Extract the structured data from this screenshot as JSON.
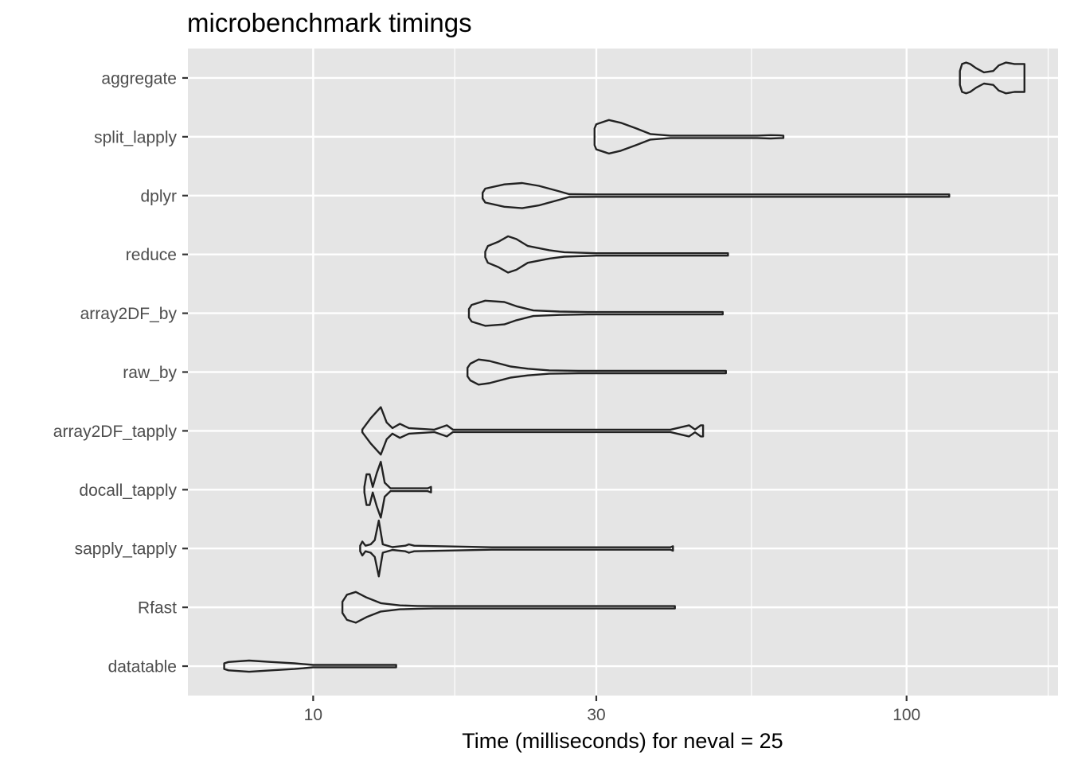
{
  "chart_data": {
    "type": "violin",
    "title": "microbenchmark timings",
    "xlabel": "Time (milliseconds) for neval = 25",
    "ylabel": "",
    "x_scale": "log10",
    "xlim": [
      6.15,
      180
    ],
    "x_major_ticks": [
      10,
      30,
      100
    ],
    "x_tick_labels": [
      "10",
      "30",
      "100"
    ],
    "x_minor_grid": [
      17.32,
      54.77,
      173.2
    ],
    "grid": true,
    "background": "#e5e5e5",
    "grid_color": "#ffffff",
    "violin_color": "#222222",
    "categories": [
      "aggregate",
      "split_lapply",
      "dplyr",
      "reduce",
      "array2DF_by",
      "raw_by",
      "array2DF_tapply",
      "docall_tapply",
      "sapply_tapply",
      "Rfast",
      "datatable"
    ],
    "series": [
      {
        "category": "aggregate",
        "min": 123,
        "max": 158,
        "profile": [
          [
            123,
            0.25
          ],
          [
            124,
            0.5
          ],
          [
            126,
            0.55
          ],
          [
            128,
            0.5
          ],
          [
            131,
            0.35
          ],
          [
            135,
            0.2
          ],
          [
            140,
            0.25
          ],
          [
            143,
            0.45
          ],
          [
            147,
            0.55
          ],
          [
            152,
            0.5
          ],
          [
            158,
            0.5
          ]
        ]
      },
      {
        "category": "split_lapply",
        "min": 29.8,
        "max": 62,
        "profile": [
          [
            29.8,
            0.3
          ],
          [
            30,
            0.45
          ],
          [
            31.5,
            0.6
          ],
          [
            33,
            0.5
          ],
          [
            35,
            0.3
          ],
          [
            37,
            0.1
          ],
          [
            40,
            0.03
          ],
          [
            50,
            0.02
          ],
          [
            56,
            0.03
          ],
          [
            59,
            0.06
          ],
          [
            61,
            0.05
          ],
          [
            62,
            0.03
          ]
        ]
      },
      {
        "category": "dplyr",
        "min": 19.3,
        "max": 118,
        "profile": [
          [
            19.3,
            0.1
          ],
          [
            19.5,
            0.25
          ],
          [
            21,
            0.4
          ],
          [
            22.5,
            0.45
          ],
          [
            24,
            0.35
          ],
          [
            26,
            0.15
          ],
          [
            27,
            0.05
          ],
          [
            30,
            0.02
          ],
          [
            60,
            0.015
          ],
          [
            118,
            0.015
          ]
        ]
      },
      {
        "category": "reduce",
        "min": 19.5,
        "max": 50,
        "profile": [
          [
            19.5,
            0.1
          ],
          [
            19.7,
            0.3
          ],
          [
            20.5,
            0.45
          ],
          [
            21.3,
            0.65
          ],
          [
            22,
            0.55
          ],
          [
            23,
            0.3
          ],
          [
            25,
            0.15
          ],
          [
            26.5,
            0.08
          ],
          [
            30,
            0.03
          ],
          [
            40,
            0.02
          ],
          [
            46,
            0.035
          ],
          [
            48,
            0.02
          ],
          [
            50,
            0.02
          ]
        ]
      },
      {
        "category": "array2DF_by",
        "min": 18.3,
        "max": 49,
        "profile": [
          [
            18.3,
            0.15
          ],
          [
            18.5,
            0.3
          ],
          [
            19.5,
            0.45
          ],
          [
            21,
            0.4
          ],
          [
            22,
            0.25
          ],
          [
            23.5,
            0.1
          ],
          [
            26,
            0.06
          ],
          [
            29,
            0.03
          ],
          [
            35,
            0.02
          ],
          [
            49,
            0.02
          ]
        ]
      },
      {
        "category": "raw_by",
        "min": 18.2,
        "max": 49.6,
        "profile": [
          [
            18.2,
            0.15
          ],
          [
            18.4,
            0.3
          ],
          [
            19,
            0.45
          ],
          [
            19.8,
            0.4
          ],
          [
            21.5,
            0.2
          ],
          [
            23,
            0.12
          ],
          [
            25,
            0.06
          ],
          [
            28,
            0.02
          ],
          [
            40,
            0.02
          ],
          [
            48,
            0.035
          ],
          [
            49.6,
            0.03
          ]
        ]
      },
      {
        "category": "array2DF_tapply",
        "min": 12.1,
        "max": 45.4,
        "profile": [
          [
            12.1,
            0.05
          ],
          [
            12.5,
            0.45
          ],
          [
            13,
            0.85
          ],
          [
            13.3,
            0.3
          ],
          [
            13.6,
            0.1
          ],
          [
            14,
            0.25
          ],
          [
            14.5,
            0.1
          ],
          [
            16,
            0.03
          ],
          [
            16.8,
            0.2
          ],
          [
            17.2,
            0.03
          ],
          [
            40,
            0.02
          ],
          [
            43,
            0.2
          ],
          [
            44,
            0.05
          ],
          [
            45,
            0.2
          ],
          [
            45.4,
            0.2
          ]
        ]
      },
      {
        "category": "docall_tapply",
        "min": 12.2,
        "max": 15.8,
        "profile": [
          [
            12.2,
            0.1
          ],
          [
            12.3,
            0.55
          ],
          [
            12.45,
            0.55
          ],
          [
            12.6,
            0.1
          ],
          [
            12.8,
            0.6
          ],
          [
            13,
            1
          ],
          [
            13.2,
            0.25
          ],
          [
            13.5,
            0.05
          ],
          [
            15.6,
            0.05
          ],
          [
            15.8,
            0.1
          ]
        ]
      },
      {
        "category": "sapply_tapply",
        "min": 12,
        "max": 40.4,
        "profile": [
          [
            12,
            0.1
          ],
          [
            12.1,
            0.25
          ],
          [
            12.25,
            0.1
          ],
          [
            12.5,
            0.15
          ],
          [
            12.7,
            0.3
          ],
          [
            12.9,
            1
          ],
          [
            13.1,
            0.15
          ],
          [
            13.6,
            0.05
          ],
          [
            14.3,
            0.1
          ],
          [
            14.5,
            0.15
          ],
          [
            14.8,
            0.1
          ],
          [
            20,
            0.02
          ],
          [
            40,
            0.02
          ],
          [
            40.4,
            0.08
          ]
        ]
      },
      {
        "category": "Rfast",
        "min": 11.2,
        "max": 40.7,
        "profile": [
          [
            11.2,
            0.2
          ],
          [
            11.4,
            0.45
          ],
          [
            11.8,
            0.55
          ],
          [
            12.3,
            0.35
          ],
          [
            13,
            0.15
          ],
          [
            14,
            0.07
          ],
          [
            15,
            0.05
          ],
          [
            16,
            0.03
          ],
          [
            20,
            0.02
          ],
          [
            40.7,
            0.02
          ]
        ]
      },
      {
        "category": "datatable",
        "min": 7.08,
        "max": 13.8,
        "profile": [
          [
            7.08,
            0.1
          ],
          [
            7.2,
            0.15
          ],
          [
            7.8,
            0.2
          ],
          [
            8.5,
            0.15
          ],
          [
            9.3,
            0.1
          ],
          [
            10,
            0.04
          ],
          [
            11,
            0.02
          ],
          [
            13.8,
            0.03
          ]
        ]
      }
    ]
  }
}
